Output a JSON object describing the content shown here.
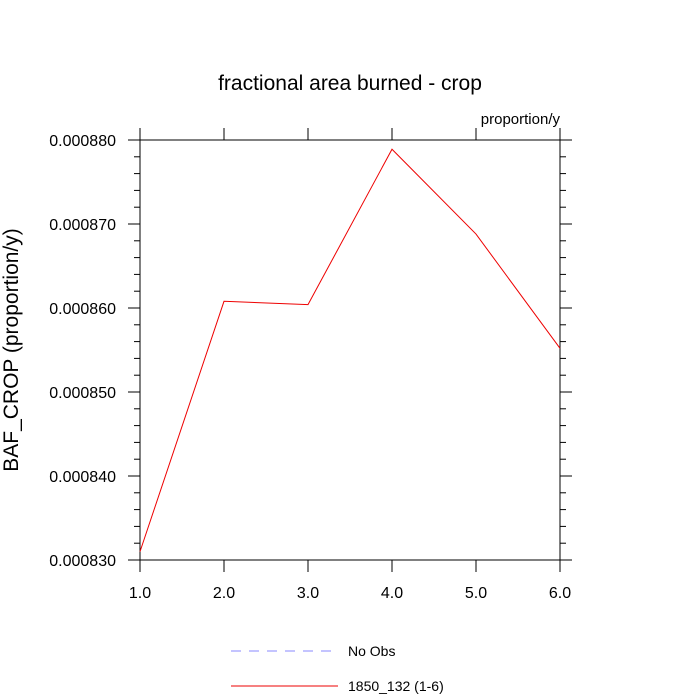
{
  "chart_data": {
    "type": "line",
    "title": "fractional area burned - crop",
    "units_label": "proportion/y",
    "ylabel": "BAF_CROP  (proportion/y)",
    "xlabel": "",
    "xlim": [
      1,
      6
    ],
    "ylim": [
      0.00083,
      0.00088
    ],
    "x_ticks": [
      "1.0",
      "2.0",
      "3.0",
      "4.0",
      "5.0",
      "6.0"
    ],
    "y_ticks": [
      "0.000830",
      "0.000840",
      "0.000850",
      "0.000860",
      "0.000870",
      "0.000880"
    ],
    "grid": false,
    "legend_position": "bottom",
    "series": [
      {
        "name": "No Obs",
        "color": "#8a8aff",
        "dash": "dashed",
        "x": [],
        "y": []
      },
      {
        "name": "1850_132 (1-6)",
        "color": "#ee0000",
        "dash": "solid",
        "x": [
          1,
          2,
          3,
          4,
          5,
          6
        ],
        "y": [
          0.000831,
          0.0008608,
          0.0008604,
          0.0008789,
          0.0008688,
          0.0008552
        ]
      }
    ]
  }
}
